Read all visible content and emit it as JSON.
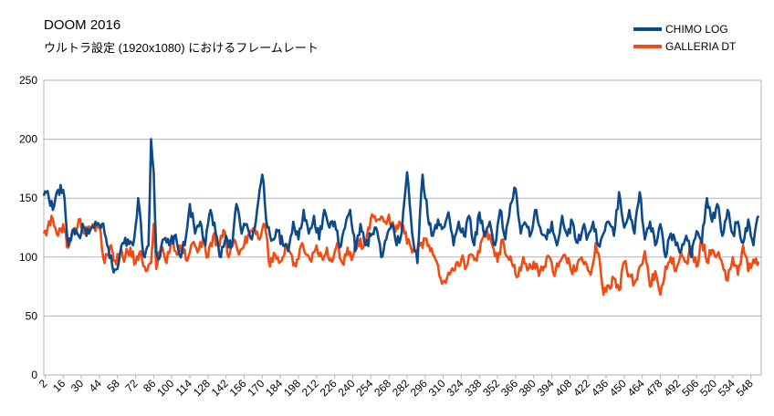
{
  "chart_data": {
    "type": "line",
    "title": "DOOM 2016",
    "subtitle": "ウルトラ設定 (1920x1080) におけるフレームレート",
    "ylim": [
      0,
      250
    ],
    "yticks": [
      0,
      50,
      100,
      150,
      200,
      250
    ],
    "xticks": [
      2,
      16,
      30,
      44,
      58,
      72,
      86,
      100,
      114,
      128,
      142,
      156,
      170,
      184,
      198,
      212,
      226,
      240,
      254,
      268,
      282,
      296,
      310,
      324,
      338,
      352,
      366,
      380,
      394,
      408,
      422,
      436,
      450,
      464,
      478,
      492,
      506,
      520,
      534,
      548
    ],
    "xrange": [
      1,
      556
    ],
    "grid": "horizontal",
    "legend_position": "top-right",
    "series": [
      {
        "name": "CHIMO LOG",
        "color": "#0d4a8c",
        "keypoints": [
          [
            1,
            152
          ],
          [
            4,
            156
          ],
          [
            8,
            140
          ],
          [
            12,
            157
          ],
          [
            16,
            157
          ],
          [
            20,
            110
          ],
          [
            24,
            124
          ],
          [
            28,
            118
          ],
          [
            32,
            125
          ],
          [
            36,
            120
          ],
          [
            40,
            125
          ],
          [
            46,
            128
          ],
          [
            50,
            110
          ],
          [
            54,
            92
          ],
          [
            58,
            90
          ],
          [
            62,
            112
          ],
          [
            66,
            115
          ],
          [
            70,
            110
          ],
          [
            74,
            150
          ],
          [
            78,
            102
          ],
          [
            82,
            110
          ],
          [
            84,
            200
          ],
          [
            86,
            172
          ],
          [
            88,
            105
          ],
          [
            90,
            98
          ],
          [
            94,
            115
          ],
          [
            98,
            110
          ],
          [
            102,
            118
          ],
          [
            106,
            102
          ],
          [
            110,
            110
          ],
          [
            114,
            145
          ],
          [
            118,
            120
          ],
          [
            122,
            130
          ],
          [
            126,
            110
          ],
          [
            130,
            140
          ],
          [
            134,
            120
          ],
          [
            138,
            100
          ],
          [
            142,
            118
          ],
          [
            146,
            108
          ],
          [
            150,
            145
          ],
          [
            154,
            120
          ],
          [
            158,
            128
          ],
          [
            162,
            115
          ],
          [
            166,
            140
          ],
          [
            170,
            170
          ],
          [
            174,
            125
          ],
          [
            178,
            115
          ],
          [
            182,
            122
          ],
          [
            186,
            110
          ],
          [
            190,
            105
          ],
          [
            194,
            130
          ],
          [
            198,
            115
          ],
          [
            202,
            140
          ],
          [
            206,
            120
          ],
          [
            210,
            135
          ],
          [
            214,
            115
          ],
          [
            218,
            140
          ],
          [
            222,
            125
          ],
          [
            226,
            130
          ],
          [
            230,
            108
          ],
          [
            234,
            125
          ],
          [
            238,
            140
          ],
          [
            242,
            105
          ],
          [
            246,
            128
          ],
          [
            250,
            110
          ],
          [
            254,
            118
          ],
          [
            258,
            125
          ],
          [
            262,
            100
          ],
          [
            266,
            115
          ],
          [
            270,
            128
          ],
          [
            274,
            110
          ],
          [
            278,
            122
          ],
          [
            282,
            172
          ],
          [
            286,
            120
          ],
          [
            290,
            95
          ],
          [
            294,
            170
          ],
          [
            298,
            135
          ],
          [
            302,
            118
          ],
          [
            306,
            132
          ],
          [
            310,
            125
          ],
          [
            314,
            138
          ],
          [
            318,
            110
          ],
          [
            322,
            130
          ],
          [
            326,
            118
          ],
          [
            330,
            135
          ],
          [
            334,
            110
          ],
          [
            338,
            138
          ],
          [
            342,
            118
          ],
          [
            346,
            130
          ],
          [
            350,
            110
          ],
          [
            354,
            140
          ],
          [
            358,
            115
          ],
          [
            362,
            145
          ],
          [
            366,
            158
          ],
          [
            370,
            120
          ],
          [
            374,
            128
          ],
          [
            378,
            120
          ],
          [
            382,
            140
          ],
          [
            386,
            120
          ],
          [
            390,
            115
          ],
          [
            394,
            130
          ],
          [
            398,
            110
          ],
          [
            402,
            135
          ],
          [
            406,
            118
          ],
          [
            410,
            130
          ],
          [
            414,
            112
          ],
          [
            418,
            125
          ],
          [
            422,
            118
          ],
          [
            426,
            130
          ],
          [
            430,
            110
          ],
          [
            434,
            120
          ],
          [
            438,
            130
          ],
          [
            442,
            118
          ],
          [
            446,
            155
          ],
          [
            450,
            125
          ],
          [
            454,
            140
          ],
          [
            458,
            120
          ],
          [
            462,
            155
          ],
          [
            466,
            115
          ],
          [
            470,
            130
          ],
          [
            474,
            110
          ],
          [
            478,
            128
          ],
          [
            482,
            100
          ],
          [
            486,
            120
          ],
          [
            490,
            110
          ],
          [
            494,
            105
          ],
          [
            498,
            118
          ],
          [
            502,
            100
          ],
          [
            506,
            122
          ],
          [
            510,
            112
          ],
          [
            514,
            150
          ],
          [
            518,
            130
          ],
          [
            522,
            145
          ],
          [
            526,
            118
          ],
          [
            530,
            140
          ],
          [
            534,
            120
          ],
          [
            538,
            130
          ],
          [
            542,
            112
          ],
          [
            546,
            132
          ],
          [
            550,
            110
          ],
          [
            554,
            135
          ]
        ]
      },
      {
        "name": "GALLERIA DT",
        "color": "#f24c14",
        "keypoints": [
          [
            1,
            120
          ],
          [
            4,
            125
          ],
          [
            8,
            132
          ],
          [
            12,
            118
          ],
          [
            16,
            128
          ],
          [
            20,
            108
          ],
          [
            24,
            122
          ],
          [
            28,
            132
          ],
          [
            32,
            120
          ],
          [
            36,
            126
          ],
          [
            40,
            125
          ],
          [
            44,
            126
          ],
          [
            48,
            95
          ],
          [
            52,
            108
          ],
          [
            56,
            97
          ],
          [
            60,
            104
          ],
          [
            64,
            100
          ],
          [
            68,
            108
          ],
          [
            72,
            95
          ],
          [
            76,
            105
          ],
          [
            80,
            88
          ],
          [
            84,
            95
          ],
          [
            86,
            128
          ],
          [
            88,
            90
          ],
          [
            92,
            110
          ],
          [
            96,
            95
          ],
          [
            100,
            118
          ],
          [
            104,
            102
          ],
          [
            108,
            110
          ],
          [
            112,
            97
          ],
          [
            116,
            112
          ],
          [
            120,
            104
          ],
          [
            124,
            115
          ],
          [
            128,
            100
          ],
          [
            132,
            118
          ],
          [
            136,
            110
          ],
          [
            140,
            123
          ],
          [
            144,
            100
          ],
          [
            148,
            115
          ],
          [
            152,
            102
          ],
          [
            156,
            110
          ],
          [
            160,
            120
          ],
          [
            164,
            125
          ],
          [
            168,
            115
          ],
          [
            172,
            128
          ],
          [
            176,
            92
          ],
          [
            180,
            102
          ],
          [
            184,
            96
          ],
          [
            188,
            110
          ],
          [
            192,
            103
          ],
          [
            196,
            92
          ],
          [
            200,
            110
          ],
          [
            204,
            102
          ],
          [
            208,
            96
          ],
          [
            212,
            110
          ],
          [
            216,
            100
          ],
          [
            220,
            108
          ],
          [
            224,
            96
          ],
          [
            228,
            112
          ],
          [
            232,
            95
          ],
          [
            236,
            108
          ],
          [
            240,
            100
          ],
          [
            244,
            115
          ],
          [
            248,
            108
          ],
          [
            252,
            125
          ],
          [
            256,
            134
          ],
          [
            260,
            132
          ],
          [
            264,
            130
          ],
          [
            268,
            136
          ],
          [
            272,
            125
          ],
          [
            276,
            130
          ],
          [
            280,
            120
          ],
          [
            284,
            112
          ],
          [
            288,
            105
          ],
          [
            292,
            110
          ],
          [
            296,
            115
          ],
          [
            300,
            105
          ],
          [
            304,
            98
          ],
          [
            308,
            82
          ],
          [
            312,
            78
          ],
          [
            316,
            88
          ],
          [
            320,
            95
          ],
          [
            324,
            98
          ],
          [
            328,
            92
          ],
          [
            332,
            102
          ],
          [
            336,
            97
          ],
          [
            340,
            115
          ],
          [
            344,
            122
          ],
          [
            348,
            110
          ],
          [
            352,
            96
          ],
          [
            356,
            115
          ],
          [
            360,
            100
          ],
          [
            364,
            92
          ],
          [
            368,
            84
          ],
          [
            372,
            100
          ],
          [
            376,
            90
          ],
          [
            380,
            96
          ],
          [
            384,
            84
          ],
          [
            388,
            92
          ],
          [
            392,
            100
          ],
          [
            396,
            84
          ],
          [
            400,
            96
          ],
          [
            404,
            102
          ],
          [
            408,
            93
          ],
          [
            412,
            88
          ],
          [
            416,
            98
          ],
          [
            420,
            96
          ],
          [
            424,
            85
          ],
          [
            428,
            112
          ],
          [
            432,
            86
          ],
          [
            434,
            68
          ],
          [
            438,
            76
          ],
          [
            442,
            82
          ],
          [
            446,
            72
          ],
          [
            450,
            96
          ],
          [
            454,
            85
          ],
          [
            458,
            78
          ],
          [
            462,
            92
          ],
          [
            466,
            105
          ],
          [
            470,
            75
          ],
          [
            474,
            88
          ],
          [
            478,
            68
          ],
          [
            482,
            92
          ],
          [
            486,
            100
          ],
          [
            490,
            88
          ],
          [
            494,
            104
          ],
          [
            498,
            96
          ],
          [
            502,
            108
          ],
          [
            506,
            92
          ],
          [
            510,
            115
          ],
          [
            514,
            96
          ],
          [
            518,
            106
          ],
          [
            522,
            102
          ],
          [
            526,
            94
          ],
          [
            530,
            80
          ],
          [
            534,
            100
          ],
          [
            538,
            85
          ],
          [
            542,
            110
          ],
          [
            546,
            88
          ],
          [
            550,
            98
          ],
          [
            554,
            96
          ]
        ]
      }
    ]
  }
}
